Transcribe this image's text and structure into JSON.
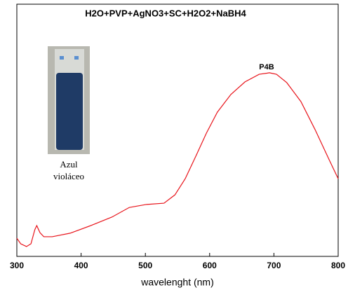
{
  "chart_data": {
    "type": "line",
    "title": "H2O+PVP+AgNO3+SC+H2O2+NaBH4",
    "x_label": "wavelenght (nm)",
    "annotations": [
      "P4B",
      "Azul",
      "violáceo"
    ],
    "color": "#e8141b",
    "x": [
      300,
      306,
      315,
      322,
      328,
      331,
      336,
      342,
      355,
      383,
      415,
      448,
      475,
      502,
      529,
      546,
      562,
      579,
      595,
      612,
      633,
      655,
      677,
      693,
      704,
      720,
      742,
      764,
      786,
      800
    ],
    "values": [
      0.072,
      0.05,
      0.039,
      0.05,
      0.106,
      0.122,
      0.094,
      0.078,
      0.078,
      0.092,
      0.122,
      0.156,
      0.194,
      0.206,
      0.211,
      0.244,
      0.308,
      0.4,
      0.489,
      0.572,
      0.642,
      0.692,
      0.722,
      0.728,
      0.722,
      0.689,
      0.614,
      0.503,
      0.383,
      0.308
    ],
    "xlim": [
      300,
      800
    ],
    "xticks": [
      300,
      400,
      500,
      600,
      700,
      800
    ],
    "ylim": [
      0,
      1
    ]
  }
}
